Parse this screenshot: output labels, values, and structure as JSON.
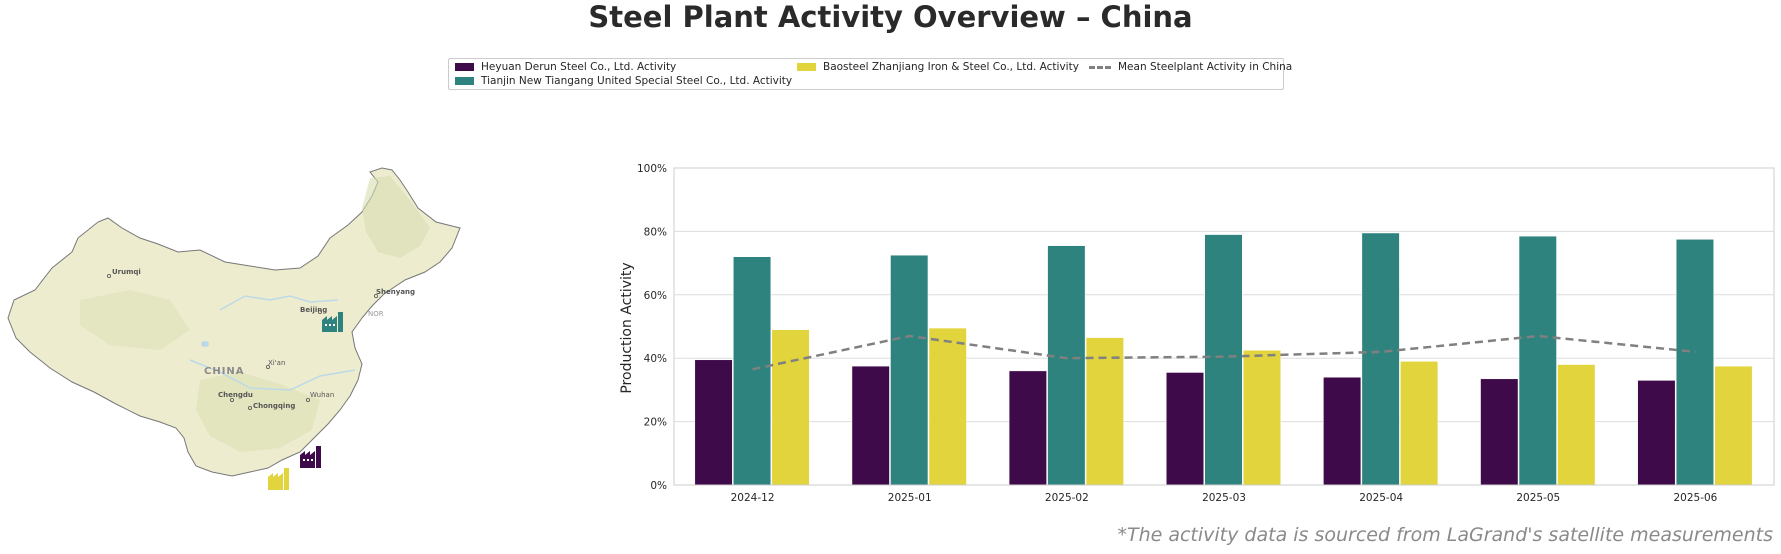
{
  "title": "Steel Plant Activity Overview – China",
  "footnote": "*The activity data is sourced from LaGrand's satellite measurements",
  "legend": {
    "items": [
      {
        "label": "Heyuan Derun Steel Co., Ltd. Activity",
        "color": "#3f0a4a",
        "kind": "bar"
      },
      {
        "label": "Tianjin New Tiangang United Special Steel Co., Ltd. Activity",
        "color": "#2e837e",
        "kind": "bar"
      },
      {
        "label": "Baosteel Zhanjiang Iron & Steel Co., Ltd. Activity",
        "color": "#e2d43c",
        "kind": "bar"
      },
      {
        "label": "Mean Steelplant Activity in China",
        "color": "#808080",
        "kind": "dashed-line"
      }
    ]
  },
  "map": {
    "country_label": "CHINA",
    "cities": [
      "Urumqi",
      "Beijing",
      "Shenyang",
      "Xi'an",
      "Chengdu",
      "Chongqing",
      "Wuhan"
    ],
    "extra_label": "NOR",
    "markers": [
      {
        "plant": "Tianjin New Tiangang United Special Steel Co., Ltd.",
        "color": "#2e837e"
      },
      {
        "plant": "Heyuan Derun Steel Co., Ltd.",
        "color": "#3f0a4a"
      },
      {
        "plant": "Baosteel Zhanjiang Iron & Steel Co., Ltd.",
        "color": "#e2d43c"
      }
    ],
    "colors": {
      "land": "#eeeccf",
      "relief": "#d7deb0",
      "water": "#bcd9e8",
      "border": "#777777"
    }
  },
  "chart_data": {
    "type": "bar",
    "ylabel": "Production Activity",
    "xlabel": "",
    "ylim": [
      0,
      100
    ],
    "yticks": [
      "0%",
      "20%",
      "40%",
      "60%",
      "80%",
      "100%"
    ],
    "grid": true,
    "categories": [
      "2024-12",
      "2025-01",
      "2025-02",
      "2025-03",
      "2025-04",
      "2025-05",
      "2025-06"
    ],
    "series": [
      {
        "name": "Heyuan Derun Steel Co., Ltd. Activity",
        "color": "#3f0a4a",
        "values": [
          39.5,
          37.5,
          36,
          35.5,
          34,
          33.5,
          33
        ]
      },
      {
        "name": "Tianjin New Tiangang United Special Steel Co., Ltd. Activity",
        "color": "#2e837e",
        "values": [
          72,
          72.5,
          75.5,
          79,
          79.5,
          78.5,
          77.5
        ]
      },
      {
        "name": "Baosteel Zhanjiang Iron & Steel Co., Ltd. Activity",
        "color": "#e2d43c",
        "values": [
          49,
          49.5,
          46.5,
          42.5,
          39,
          38,
          37.5
        ]
      }
    ],
    "line": {
      "name": "Mean Steelplant Activity in China",
      "color": "#808080",
      "values": [
        36.5,
        47,
        40,
        40.5,
        42,
        47,
        42
      ]
    }
  }
}
